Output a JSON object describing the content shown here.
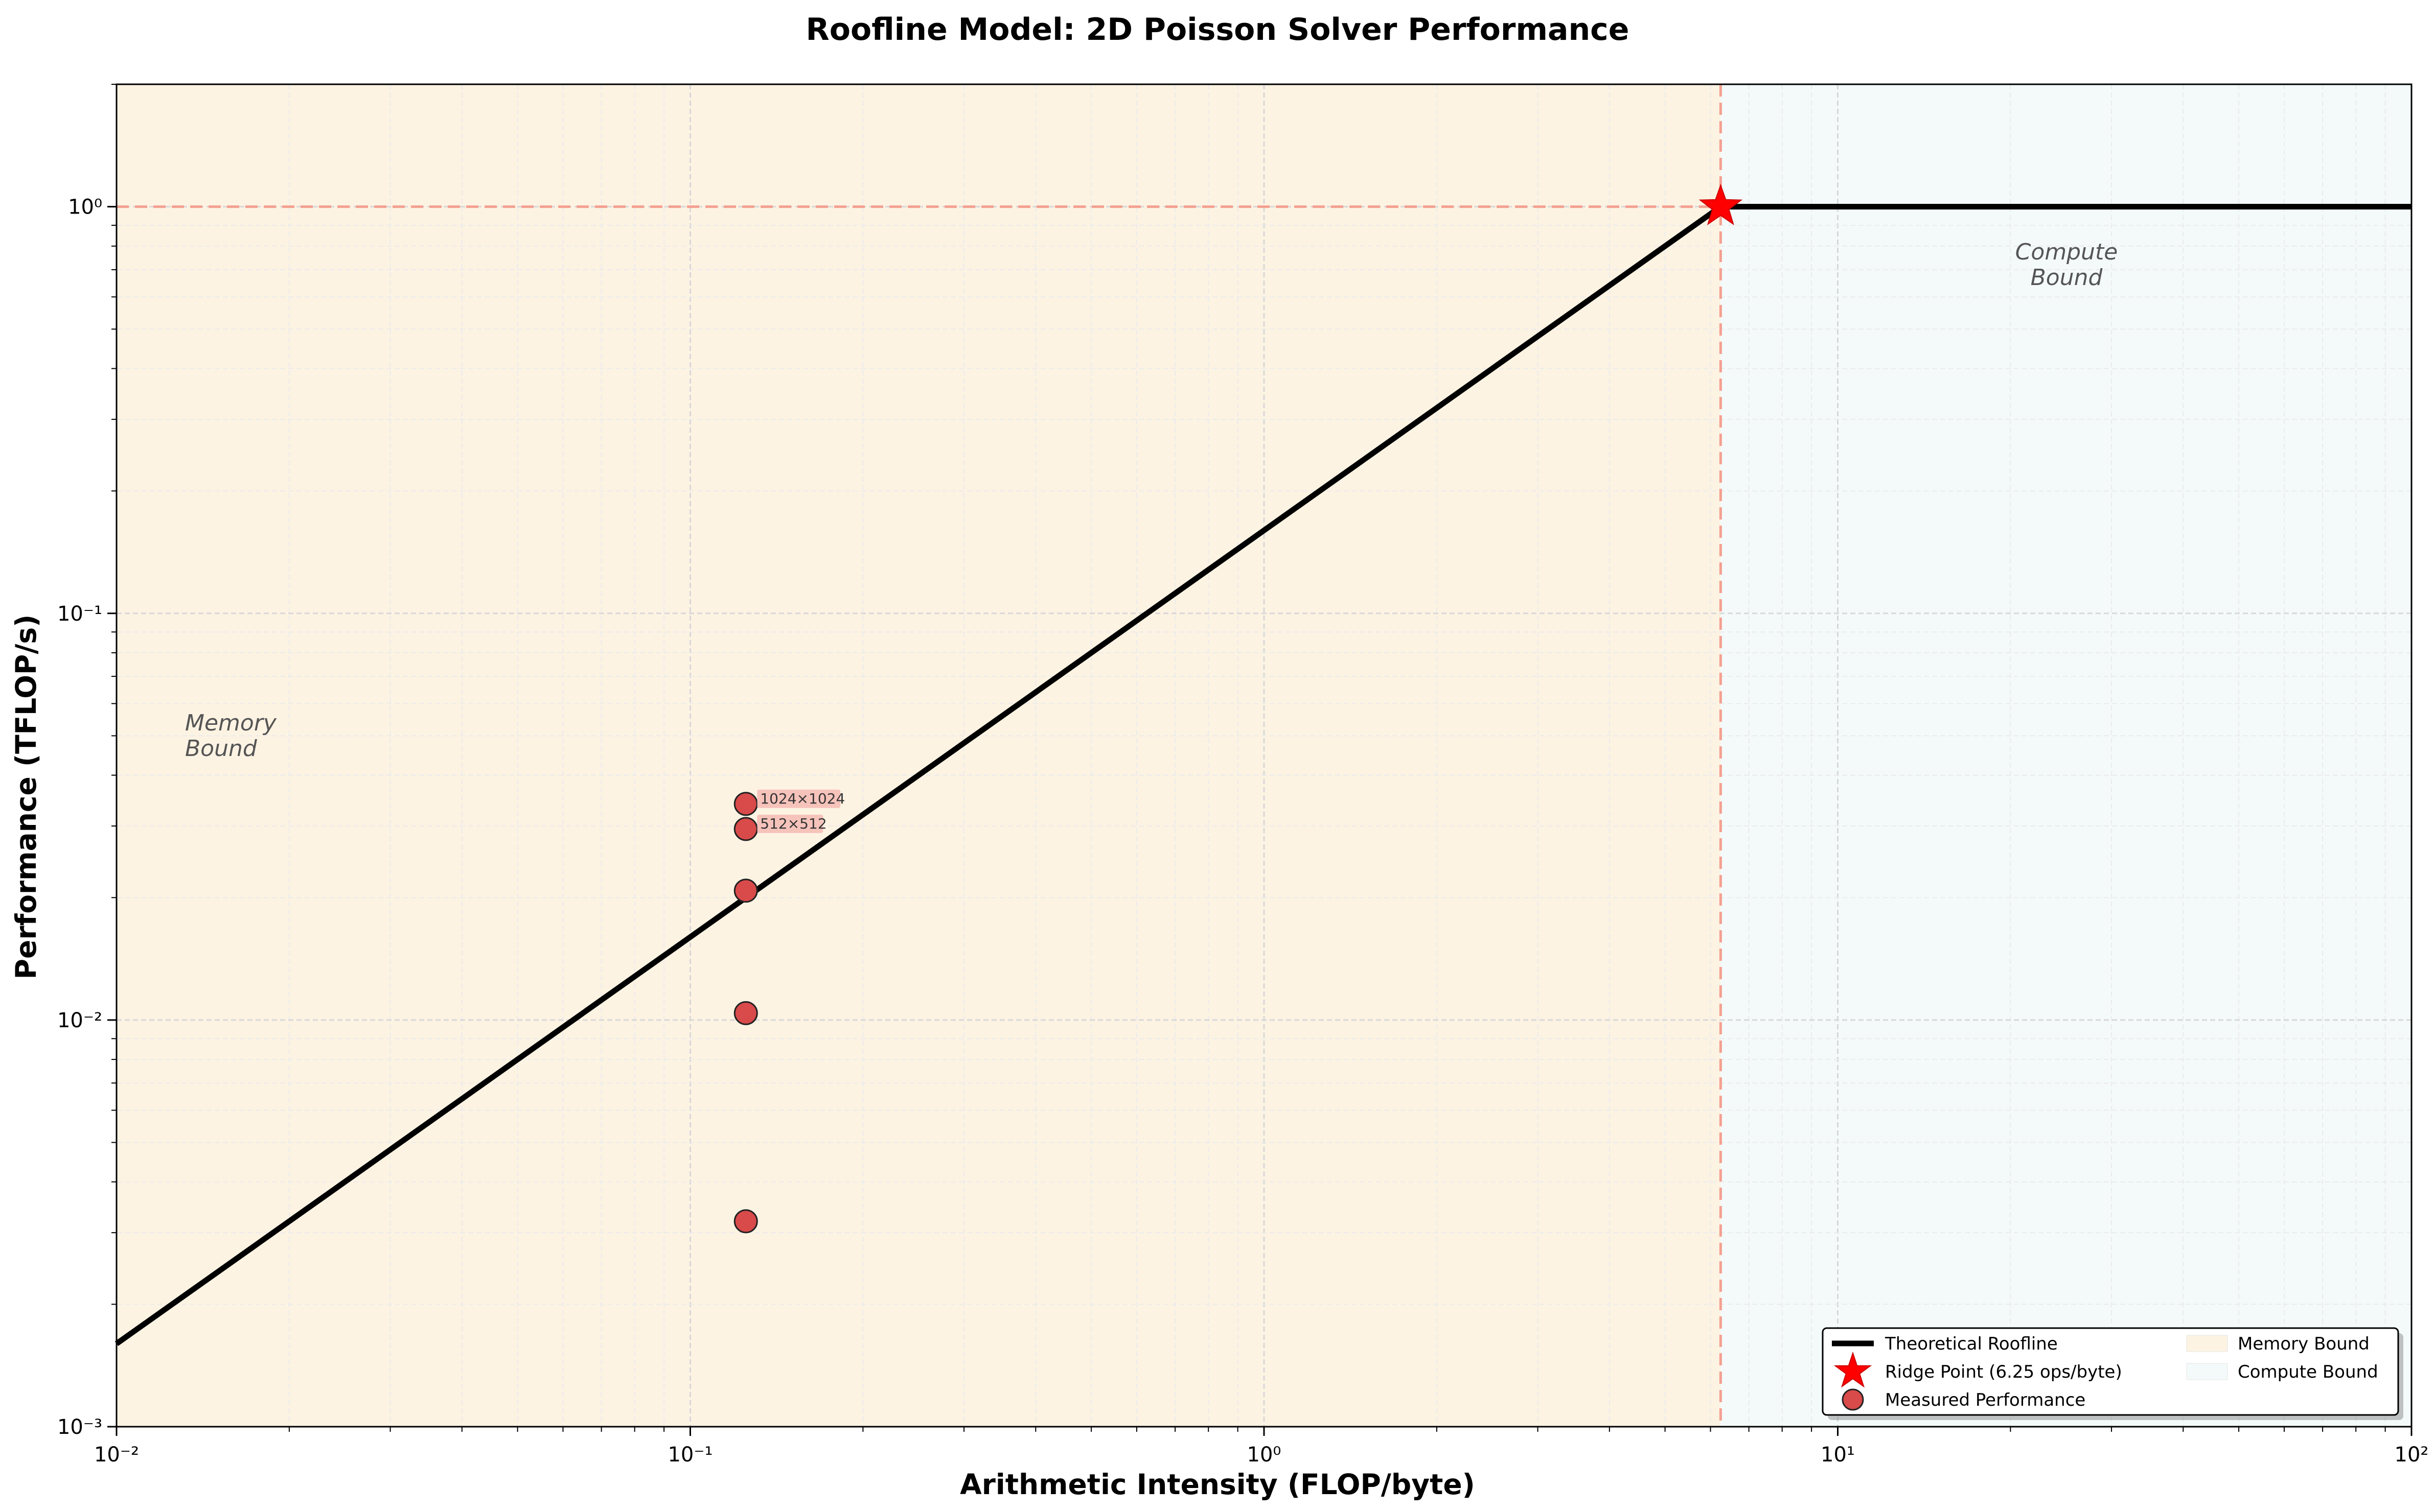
{
  "chart_data": {
    "type": "line",
    "title": "Roofline Model: 2D Poisson Solver Performance",
    "xlabel": "Arithmetic Intensity (FLOP/byte)",
    "ylabel": "Performance (TFLOP/s)",
    "xscale": "log",
    "yscale": "log",
    "xlim": [
      0.01,
      100
    ],
    "ylim": [
      0.001,
      2
    ],
    "grid": true,
    "x_ticks": [
      {
        "value": 0.01,
        "label": "10⁻²"
      },
      {
        "value": 0.1,
        "label": "10⁻¹"
      },
      {
        "value": 1,
        "label": "10⁰"
      },
      {
        "value": 10,
        "label": "10¹"
      },
      {
        "value": 100,
        "label": "10²"
      }
    ],
    "y_ticks": [
      {
        "value": 0.001,
        "label": "10⁻³"
      },
      {
        "value": 0.01,
        "label": "10⁻²"
      },
      {
        "value": 0.1,
        "label": "10⁻¹"
      },
      {
        "value": 1,
        "label": "10⁰"
      }
    ],
    "roofline": {
      "name": "Theoretical Roofline",
      "points": [
        [
          0.01,
          0.0016
        ],
        [
          6.25,
          1.0
        ],
        [
          100,
          1.0
        ]
      ],
      "color": "#000000"
    },
    "ridge_point": {
      "name": "Ridge Point (6.25 ops/byte)",
      "x": 6.25,
      "y": 1.0,
      "color": "#ff0000"
    },
    "measured": {
      "name": "Measured Performance",
      "color": "#d94a4a",
      "points": [
        {
          "x": 0.125,
          "y": 0.034,
          "label": "1024×1024"
        },
        {
          "x": 0.125,
          "y": 0.0295,
          "label": "512×512"
        },
        {
          "x": 0.125,
          "y": 0.0208,
          "label": ""
        },
        {
          "x": 0.125,
          "y": 0.0104,
          "label": ""
        },
        {
          "x": 0.125,
          "y": 0.0032,
          "label": ""
        }
      ]
    },
    "regions": [
      {
        "name": "Memory Bound",
        "label": "Memory\nBound",
        "x_from": 0.01,
        "x_to": 6.25,
        "color": "#fdf3e3"
      },
      {
        "name": "Compute Bound",
        "label": "Compute\nBound",
        "x_from": 6.25,
        "x_to": 100,
        "color": "#f4fafa"
      }
    ],
    "peak_line_color": "#f4a090",
    "legend": {
      "placement": "lower-right",
      "entries": [
        "Theoretical Roofline",
        "Ridge Point (6.25 ops/byte)",
        "Measured Performance",
        "Memory Bound",
        "Compute Bound"
      ]
    }
  }
}
